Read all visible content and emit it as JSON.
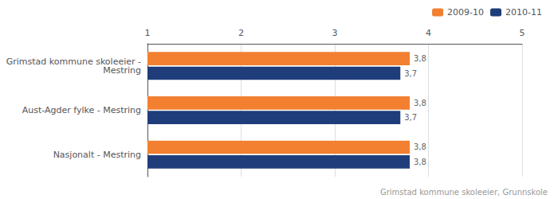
{
  "chart_data": {
    "type": "bar",
    "orientation": "horizontal",
    "categories": [
      "Nasjonalt - Mestring",
      "Aust-Agder fylke - Mestring",
      "Grimstad kommune skoleeier -\nMestring"
    ],
    "series": [
      {
        "name": "2009-10",
        "color": "#f28030",
        "values": [
          3.8,
          3.8,
          3.8
        ],
        "value_labels": [
          "3,8",
          "3,8",
          "3,8"
        ]
      },
      {
        "name": "2010-11",
        "color": "#1f3d7a",
        "values": [
          3.8,
          3.7,
          3.7
        ],
        "value_labels": [
          "3,8",
          "3,7",
          "3,7"
        ]
      }
    ],
    "xlim": [
      1,
      5
    ],
    "xticks": [
      1,
      2,
      3,
      4,
      5
    ],
    "grid": true,
    "legend": "upper right",
    "data_labels": true,
    "annotations": [
      "Grimstad kommune skoleeier, Grunnskole"
    ]
  }
}
